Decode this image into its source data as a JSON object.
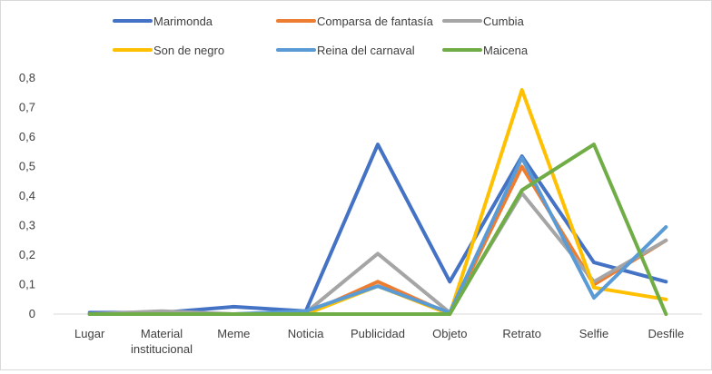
{
  "chart_data": {
    "type": "line",
    "categories": [
      "Lugar",
      [
        "Material",
        "institucional"
      ],
      "Meme",
      "Noticia",
      "Publicidad",
      "Objeto",
      "Retrato",
      "Selfie",
      "Desfile"
    ],
    "ylim": [
      0,
      0.8
    ],
    "yticks": [
      "0",
      "0,1",
      "0,2",
      "0,3",
      "0,4",
      "0,5",
      "0,6",
      "0,7",
      "0,8"
    ],
    "grid": false,
    "legend_position": "top",
    "series": [
      {
        "name": "Marimonda",
        "color": "#4472c4",
        "values": [
          0.005,
          0.005,
          0.025,
          0.01,
          0.575,
          0.11,
          0.535,
          0.175,
          0.11
        ]
      },
      {
        "name": "Comparsa de fantasía",
        "color": "#ed7d31",
        "values": [
          0,
          0.003,
          0,
          0,
          0.11,
          0,
          0.5,
          0.1,
          0.25
        ]
      },
      {
        "name": "Cumbia",
        "color": "#a5a5a5",
        "values": [
          0,
          0.01,
          0,
          0.005,
          0.205,
          0.005,
          0.41,
          0.11,
          0.25
        ]
      },
      {
        "name": "Son de negro",
        "color": "#ffc000",
        "values": [
          0,
          0,
          0,
          0,
          0.095,
          0,
          0.76,
          0.09,
          0.05
        ]
      },
      {
        "name": "Reina del carnaval",
        "color": "#5b9bd5",
        "values": [
          0,
          0,
          0,
          0.01,
          0.095,
          0.005,
          0.53,
          0.055,
          0.295
        ]
      },
      {
        "name": "Maicena",
        "color": "#70ad47",
        "values": [
          0,
          0,
          0,
          0,
          0,
          0,
          0.42,
          0.575,
          0
        ]
      }
    ]
  }
}
